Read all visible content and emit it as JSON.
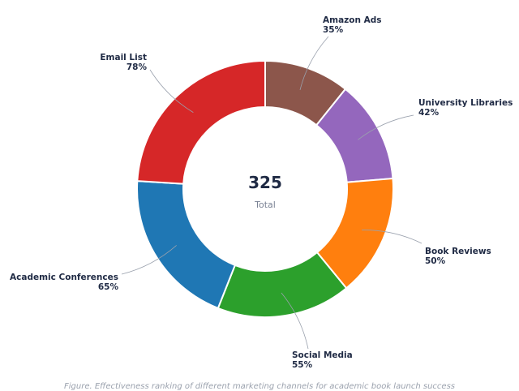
{
  "chart_data": {
    "type": "pie",
    "variant": "donut",
    "categories": [
      "Amazon Ads",
      "University Libraries",
      "Book Reviews",
      "Social Media",
      "Academic Conferences",
      "Email List"
    ],
    "values": [
      35,
      42,
      50,
      55,
      65,
      78
    ],
    "value_labels": [
      "35%",
      "42%",
      "50%",
      "55%",
      "65%",
      "78%"
    ],
    "colors": [
      "#8c564b",
      "#9467bd",
      "#ff7f0e",
      "#2ca02c",
      "#1f77b4",
      "#d62728"
    ],
    "center": {
      "value": "325",
      "label": "Total"
    },
    "caption": "Figure. Effectiveness ranking of different marketing channels for academic book launch success"
  }
}
